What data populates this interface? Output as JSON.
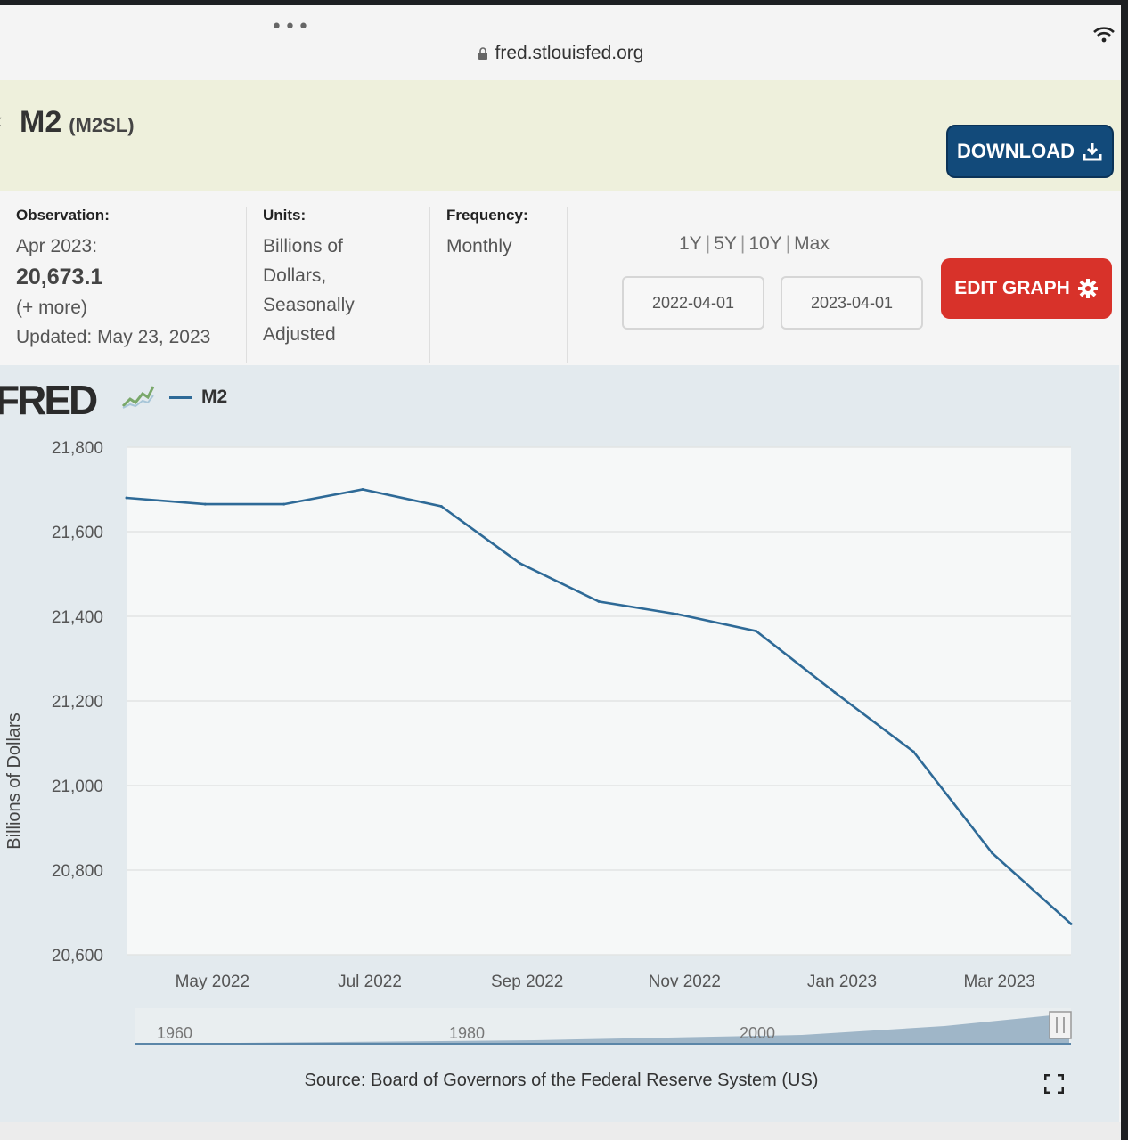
{
  "browser": {
    "url": "fred.stlouisfed.org",
    "dots": "•••"
  },
  "header": {
    "title": "M2",
    "series_id": "(M2SL)",
    "download_label": "DOWNLOAD"
  },
  "meta": {
    "observation_label": "Observation:",
    "observation_period": "Apr 2023:",
    "observation_value": "20,673.1",
    "more": "(+ more)",
    "updated": "Updated: May 23, 2023",
    "units_label": "Units:",
    "units_lines": [
      "Billions of",
      "Dollars,",
      "Seasonally",
      "Adjusted"
    ],
    "frequency_label": "Frequency:",
    "frequency_value": "Monthly",
    "range_links": [
      "1Y",
      "5Y",
      "10Y",
      "Max"
    ],
    "start_date": "2022-04-01",
    "end_date": "2023-04-01",
    "edit_label": "EDIT GRAPH"
  },
  "chart": {
    "logo_text": "FRED",
    "legend_label": "M2",
    "source": "Source: Board of Governors of the Federal Reserve System (US)",
    "slider_labels": [
      "1960",
      "1980",
      "2000"
    ]
  },
  "chart_data": {
    "type": "line",
    "ylabel": "Billions of Dollars",
    "ylim": [
      20600,
      21800
    ],
    "yticks": [
      "21,800",
      "21,600",
      "21,400",
      "21,200",
      "21,000",
      "20,800",
      "20,600"
    ],
    "xticks": [
      "May 2022",
      "Jul 2022",
      "Sep 2022",
      "Nov 2022",
      "Jan 2023",
      "Mar 2023"
    ],
    "grid": true,
    "series": [
      {
        "name": "M2",
        "color": "#2e6a97",
        "x": [
          "2022-04",
          "2022-05",
          "2022-06",
          "2022-07",
          "2022-08",
          "2022-09",
          "2022-10",
          "2022-11",
          "2022-12",
          "2023-01",
          "2023-02",
          "2023-03",
          "2023-04"
        ],
        "values": [
          21680,
          21665,
          21665,
          21700,
          21660,
          21525,
          21435,
          21405,
          21365,
          21220,
          21080,
          20840,
          20673
        ]
      }
    ]
  }
}
